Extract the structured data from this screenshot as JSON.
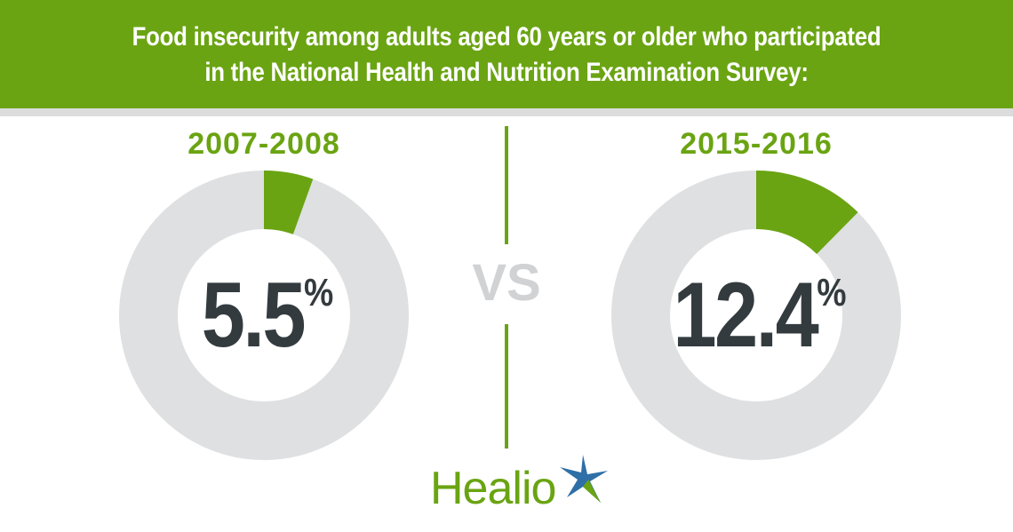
{
  "header": {
    "line1": "Food insecurity among adults aged 60 years or older who participated",
    "line2": "in the National Health and Nutrition Examination Survey:"
  },
  "vs_label": "VS",
  "logo": {
    "text": "Healio"
  },
  "colors": {
    "accent": "#6aa412",
    "track": "#dfe0e1",
    "value_text": "#333b3f"
  },
  "chart_data": [
    {
      "type": "pie",
      "variant": "donut",
      "title": "2007-2008",
      "value": 5.5,
      "label": "5.5",
      "unit": "%",
      "max": 100
    },
    {
      "type": "pie",
      "variant": "donut",
      "title": "2015-2016",
      "value": 12.4,
      "label": "12.4",
      "unit": "%",
      "max": 100
    }
  ]
}
